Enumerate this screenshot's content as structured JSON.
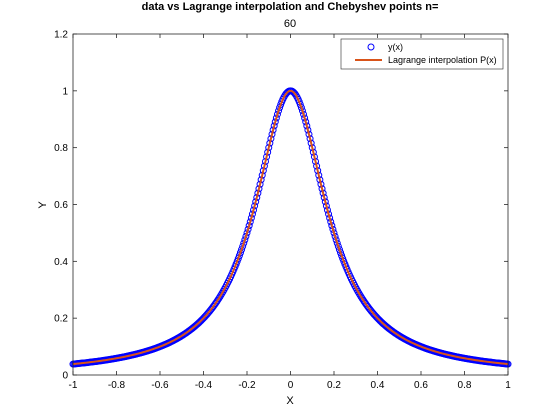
{
  "chart_data": {
    "type": "line",
    "title": "data vs Lagrange interpolation and Chebyshev points n=",
    "subtitle": "60",
    "xlabel": "X",
    "ylabel": "Y",
    "xlim": [
      -1,
      1
    ],
    "ylim": [
      0,
      1.2
    ],
    "xticks": [
      "-1",
      "-0.8",
      "-0.6",
      "-0.4",
      "-0.2",
      "0",
      "0.2",
      "0.4",
      "0.6",
      "0.8",
      "1"
    ],
    "yticks": [
      "0",
      "0.2",
      "0.4",
      "0.6",
      "0.8",
      "1",
      "1.2"
    ],
    "grid": false,
    "legend_position": "top-right",
    "series": [
      {
        "name": "y(x)",
        "style": "markers",
        "marker": "circle",
        "color": "#0000ff",
        "x": [
          -1.0,
          -0.95,
          -0.9,
          -0.85,
          -0.8,
          -0.75,
          -0.7,
          -0.65,
          -0.6,
          -0.55,
          -0.5,
          -0.45,
          -0.4,
          -0.35,
          -0.3,
          -0.25,
          -0.2,
          -0.15,
          -0.1,
          -0.05,
          0.0,
          0.05,
          0.1,
          0.15,
          0.2,
          0.25,
          0.3,
          0.35,
          0.4,
          0.45,
          0.5,
          0.55,
          0.6,
          0.65,
          0.7,
          0.75,
          0.8,
          0.85,
          0.9,
          0.95,
          1.0
        ],
        "y": [
          0.038,
          0.042,
          0.047,
          0.052,
          0.059,
          0.066,
          0.075,
          0.086,
          0.1,
          0.117,
          0.138,
          0.165,
          0.2,
          0.246,
          0.308,
          0.39,
          0.5,
          0.64,
          0.8,
          0.941,
          1.0,
          0.941,
          0.8,
          0.64,
          0.5,
          0.39,
          0.308,
          0.246,
          0.2,
          0.165,
          0.138,
          0.117,
          0.1,
          0.086,
          0.075,
          0.066,
          0.059,
          0.052,
          0.047,
          0.042,
          0.038
        ]
      },
      {
        "name": "Lagrange interpolation P(x)",
        "style": "line",
        "color": "#d95319",
        "x": [
          -1.0,
          -0.95,
          -0.9,
          -0.85,
          -0.8,
          -0.75,
          -0.7,
          -0.65,
          -0.6,
          -0.55,
          -0.5,
          -0.45,
          -0.4,
          -0.35,
          -0.3,
          -0.25,
          -0.2,
          -0.15,
          -0.1,
          -0.05,
          0.0,
          0.05,
          0.1,
          0.15,
          0.2,
          0.25,
          0.3,
          0.35,
          0.4,
          0.45,
          0.5,
          0.55,
          0.6,
          0.65,
          0.7,
          0.75,
          0.8,
          0.85,
          0.9,
          0.95,
          1.0
        ],
        "y": [
          0.038,
          0.042,
          0.047,
          0.052,
          0.059,
          0.066,
          0.075,
          0.086,
          0.1,
          0.117,
          0.138,
          0.165,
          0.2,
          0.246,
          0.308,
          0.39,
          0.5,
          0.64,
          0.8,
          0.941,
          1.0,
          0.941,
          0.8,
          0.64,
          0.5,
          0.39,
          0.308,
          0.246,
          0.2,
          0.165,
          0.138,
          0.117,
          0.1,
          0.086,
          0.075,
          0.066,
          0.059,
          0.052,
          0.047,
          0.042,
          0.038
        ]
      }
    ]
  }
}
